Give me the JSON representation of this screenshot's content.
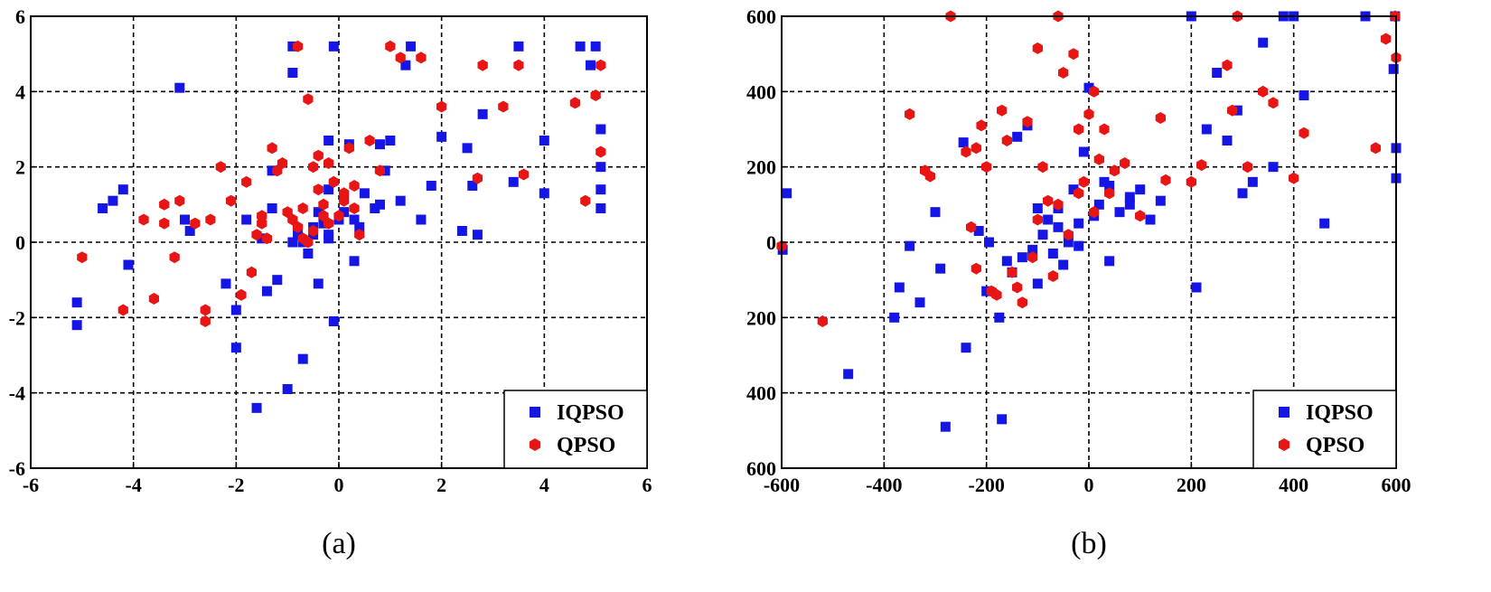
{
  "colors": {
    "iqpso": "#1515e6",
    "qpso": "#e81515",
    "grid": "#000000"
  },
  "chart_data": [
    {
      "type": "scatter",
      "caption": "(a)",
      "xlim": [
        -6,
        6
      ],
      "ylim": [
        -6,
        6
      ],
      "xticks": [
        -6,
        -4,
        -2,
        0,
        2,
        4,
        6
      ],
      "yticks": [
        -6,
        -4,
        -2,
        0,
        2,
        4,
        6
      ],
      "xtick_labels": [
        "-6",
        "-4",
        "-2",
        "0",
        "2",
        "4",
        "6"
      ],
      "ytick_labels": [
        "-6",
        "-4",
        "-2",
        "0",
        "2",
        "4",
        "6"
      ],
      "grid": true,
      "legend_position": "bottom-right",
      "series": [
        {
          "name": "IQPSO",
          "marker": "square",
          "x": [
            -5.1,
            -5.1,
            -4.6,
            -4.4,
            -4.2,
            -4.1,
            -3.1,
            -3.0,
            -2.9,
            -2.2,
            -2.0,
            -2.0,
            -1.6,
            -1.5,
            -1.4,
            -1.3,
            -1.2,
            -1.0,
            -0.9,
            -0.9,
            -0.8,
            -0.7,
            -0.7,
            -0.6,
            -0.5,
            -0.4,
            -0.3,
            -0.2,
            -0.2,
            -0.1,
            0.0,
            0.1,
            0.2,
            0.3,
            0.4,
            0.5,
            0.7,
            0.8,
            0.9,
            1.0,
            1.2,
            1.3,
            1.4,
            1.6,
            1.8,
            2.0,
            2.4,
            2.5,
            2.6,
            2.7,
            2.8,
            3.4,
            3.5,
            4.0,
            4.0,
            4.7,
            4.9,
            5.0,
            5.1,
            5.1,
            5.1,
            5.1,
            -0.4,
            -0.2,
            0.1,
            -0.5,
            0.3,
            -1.8,
            -1.3,
            0.8,
            -0.1,
            -0.2,
            -0.9
          ],
          "y": [
            -1.6,
            -2.2,
            0.9,
            1.1,
            1.4,
            -0.6,
            4.1,
            0.6,
            0.3,
            -1.1,
            -2.8,
            -1.8,
            -4.4,
            0.1,
            -1.3,
            1.9,
            -1.0,
            -3.9,
            5.2,
            4.5,
            0.2,
            -3.1,
            0.0,
            -0.3,
            0.4,
            0.8,
            0.5,
            1.4,
            2.7,
            -2.1,
            0.6,
            1.2,
            2.6,
            0.6,
            0.4,
            1.3,
            0.9,
            2.6,
            1.9,
            2.7,
            1.1,
            4.7,
            5.2,
            0.6,
            1.5,
            2.8,
            0.3,
            2.5,
            1.5,
            0.2,
            3.4,
            1.6,
            5.2,
            1.3,
            2.7,
            5.2,
            4.7,
            5.2,
            3.0,
            2.0,
            1.4,
            0.9,
            -1.1,
            0.1,
            0.8,
            0.2,
            -0.5,
            0.6,
            0.9,
            1.0,
            5.2,
            0.2,
            0.0
          ]
        },
        {
          "name": "QPSO",
          "marker": "hexagon",
          "x": [
            -5.0,
            -4.2,
            -3.8,
            -3.6,
            -3.4,
            -3.4,
            -3.2,
            -3.1,
            -2.8,
            -2.6,
            -2.6,
            -2.5,
            -2.3,
            -2.1,
            -1.9,
            -1.8,
            -1.7,
            -1.6,
            -1.5,
            -1.4,
            -1.3,
            -1.2,
            -1.1,
            -1.0,
            -0.9,
            -0.8,
            -0.7,
            -0.6,
            -0.5,
            -0.4,
            -0.3,
            -0.2,
            -0.1,
            0.0,
            0.1,
            0.2,
            0.3,
            0.4,
            0.6,
            0.8,
            1.0,
            1.2,
            1.6,
            2.0,
            2.7,
            2.8,
            3.2,
            3.5,
            3.6,
            4.6,
            4.8,
            5.0,
            5.1,
            5.1,
            -0.8,
            -0.5,
            -0.7,
            -0.2,
            -0.4,
            0.3,
            -1.5,
            -0.3,
            0.1,
            -0.6
          ],
          "y": [
            -0.4,
            -1.8,
            0.6,
            -1.5,
            1.0,
            0.5,
            -0.4,
            1.1,
            0.5,
            -1.8,
            -2.1,
            0.6,
            2.0,
            1.1,
            -1.4,
            1.6,
            -0.8,
            0.2,
            0.7,
            0.1,
            2.5,
            1.9,
            2.1,
            0.8,
            0.6,
            0.4,
            0.1,
            3.8,
            2.0,
            1.4,
            1.0,
            2.1,
            1.6,
            0.7,
            1.3,
            2.5,
            0.9,
            0.2,
            2.7,
            1.9,
            5.2,
            4.9,
            4.9,
            3.6,
            1.7,
            4.7,
            3.6,
            4.7,
            1.8,
            3.7,
            1.1,
            3.9,
            2.4,
            4.7,
            5.2,
            0.3,
            0.9,
            0.5,
            2.3,
            1.5,
            0.5,
            0.7,
            1.1,
            0.0
          ]
        }
      ]
    },
    {
      "type": "scatter",
      "caption": "(b)",
      "xlim": [
        -600,
        600
      ],
      "ylim": [
        -600,
        600
      ],
      "xticks": [
        -600,
        -400,
        -200,
        0,
        200,
        400,
        600
      ],
      "yticks": [
        -600,
        -400,
        -200,
        0,
        200,
        400,
        600
      ],
      "xtick_labels": [
        "-600",
        "-400",
        "-200",
        "0",
        "200",
        "400",
        "600"
      ],
      "ytick_labels": [
        "-600",
        "-400",
        "-200",
        "0",
        "200",
        "400",
        "600"
      ],
      "grid": true,
      "legend_position": "bottom-right",
      "series": [
        {
          "name": "IQPSO",
          "marker": "square",
          "x": [
            -598,
            -590,
            -470,
            -380,
            -370,
            -350,
            -330,
            -300,
            -290,
            -280,
            -245,
            -240,
            -215,
            -200,
            -195,
            -175,
            -170,
            -160,
            -150,
            -140,
            -130,
            -120,
            -110,
            -100,
            -90,
            -80,
            -70,
            -60,
            -50,
            -40,
            -30,
            -20,
            -10,
            0,
            10,
            20,
            30,
            40,
            60,
            80,
            100,
            120,
            140,
            200,
            210,
            230,
            250,
            270,
            290,
            300,
            320,
            340,
            360,
            380,
            400,
            420,
            460,
            540,
            595,
            598,
            600,
            600,
            -100,
            -60,
            -20,
            40,
            80
          ],
          "y": [
            -20,
            130,
            -350,
            -200,
            -120,
            -10,
            -160,
            80,
            -70,
            -490,
            265,
            -280,
            30,
            -130,
            0,
            -200,
            -470,
            -50,
            -80,
            280,
            -40,
            310,
            -20,
            -110,
            20,
            60,
            -30,
            90,
            -60,
            0,
            140,
            50,
            240,
            410,
            70,
            100,
            160,
            -50,
            80,
            120,
            140,
            60,
            110,
            600,
            -120,
            300,
            450,
            270,
            350,
            130,
            160,
            530,
            200,
            600,
            600,
            390,
            50,
            600,
            460,
            600,
            250,
            170,
            90,
            40,
            -10,
            150,
            100
          ],
          "x2_note": ""
        },
        {
          "name": "QPSO",
          "marker": "hexagon",
          "x": [
            -600,
            -520,
            -350,
            -320,
            -310,
            -270,
            -240,
            -230,
            -220,
            -210,
            -200,
            -190,
            -180,
            -170,
            -160,
            -150,
            -140,
            -130,
            -120,
            -110,
            -100,
            -90,
            -80,
            -70,
            -60,
            -50,
            -40,
            -30,
            -20,
            -10,
            0,
            10,
            20,
            30,
            50,
            70,
            100,
            140,
            150,
            200,
            220,
            270,
            280,
            290,
            310,
            340,
            360,
            400,
            420,
            560,
            580,
            598,
            600,
            -220,
            -20,
            -100,
            -60,
            40,
            10
          ],
          "y": [
            -10,
            -210,
            340,
            190,
            175,
            600,
            240,
            40,
            -70,
            310,
            200,
            -130,
            -140,
            350,
            270,
            -80,
            -120,
            -160,
            320,
            -40,
            515,
            200,
            110,
            -90,
            600,
            450,
            20,
            500,
            300,
            160,
            340,
            400,
            220,
            300,
            190,
            210,
            70,
            330,
            165,
            160,
            205,
            470,
            350,
            600,
            200,
            400,
            370,
            170,
            290,
            250,
            540,
            600,
            490,
            250,
            130,
            60,
            100,
            130,
            80
          ]
        }
      ]
    }
  ]
}
